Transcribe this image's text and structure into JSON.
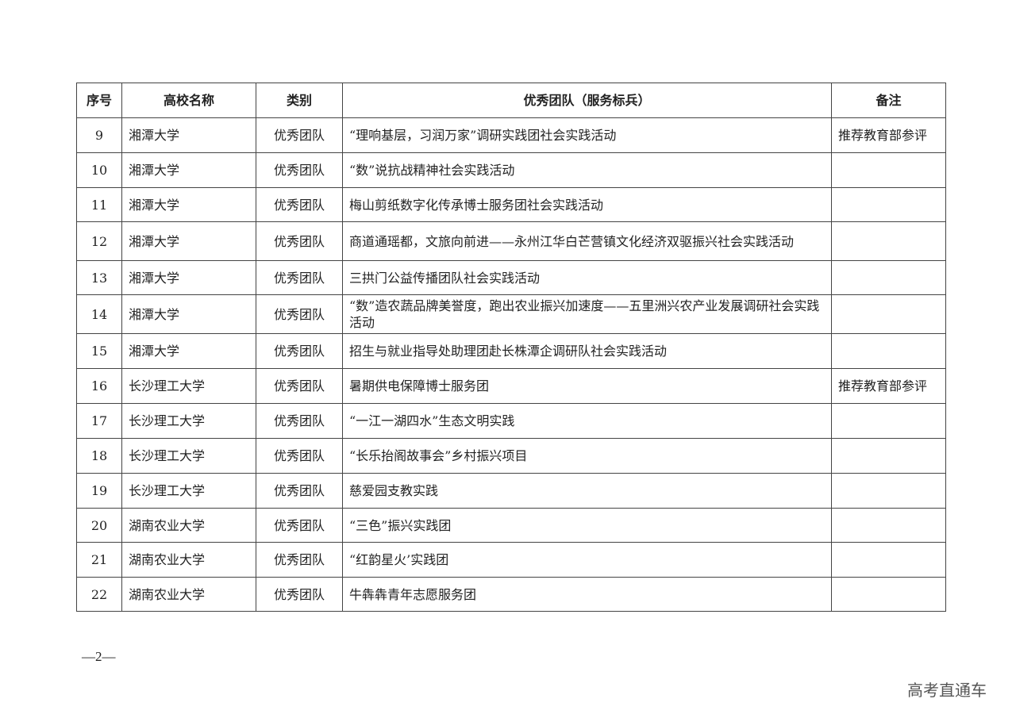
{
  "table": {
    "headers": [
      "序号",
      "高校名称",
      "类别",
      "优秀团队（服务标兵）",
      "备注"
    ],
    "rows": [
      [
        "9",
        "湘潭大学",
        "优秀团队",
        "“理响基层，习润万家”调研实践团社会实践活动",
        "推荐教育部参评"
      ],
      [
        "10",
        "湘潭大学",
        "优秀团队",
        "“数”说抗战精神社会实践活动",
        ""
      ],
      [
        "11",
        "湘潭大学",
        "优秀团队",
        "梅山剪纸数字化传承博士服务团社会实践活动",
        ""
      ],
      [
        "12",
        "湘潭大学",
        "优秀团队",
        "商道通瑶都，文旅向前进——永州江华白芒营镇文化经济双驱振兴社会实践活动",
        ""
      ],
      [
        "13",
        "湘潭大学",
        "优秀团队",
        "三拱门公益传播团队社会实践活动",
        ""
      ],
      [
        "14",
        "湘潭大学",
        "优秀团队",
        "“数”造农蔬品牌美誉度，跑出农业振兴加速度——五里洲兴农产业发展调研社会实践活动",
        ""
      ],
      [
        "15",
        "湘潭大学",
        "优秀团队",
        "招生与就业指导处助理团赴长株潭企调研队社会实践活动",
        ""
      ],
      [
        "16",
        "长沙理工大学",
        "优秀团队",
        "暑期供电保障博士服务团",
        "推荐教育部参评"
      ],
      [
        "17",
        "长沙理工大学",
        "优秀团队",
        "“一江一湖四水”生态文明实践",
        ""
      ],
      [
        "18",
        "长沙理工大学",
        "优秀团队",
        "“长乐抬阁故事会”乡村振兴项目",
        ""
      ],
      [
        "19",
        "长沙理工大学",
        "优秀团队",
        "慈爱园支教实践",
        ""
      ],
      [
        "20",
        "湖南农业大学",
        "优秀团队",
        "“三色”振兴实践团",
        ""
      ],
      [
        "21",
        "湖南农业大学",
        "优秀团队",
        "“红韵星火’实践团",
        ""
      ],
      [
        "22",
        "湖南农业大学",
        "优秀团队",
        "牛犇犇青年志愿服务团",
        ""
      ]
    ]
  },
  "footer": {
    "page": "—2—"
  },
  "watermark": "高考直通车"
}
